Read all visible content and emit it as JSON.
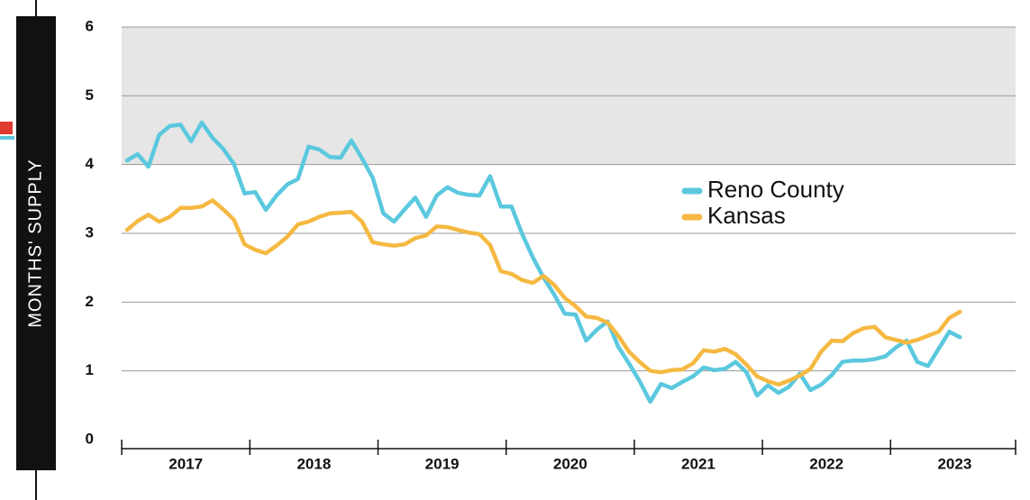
{
  "chart_data": {
    "type": "line",
    "y_label": "MONTHS' SUPPLY",
    "categories": [
      null,
      null,
      null,
      null,
      null,
      null,
      "2017",
      null,
      null,
      null,
      null,
      null,
      null,
      null,
      null,
      null,
      null,
      null,
      "2018",
      null,
      null,
      null,
      null,
      null,
      null,
      null,
      null,
      null,
      null,
      null,
      "2019",
      null,
      null,
      null,
      null,
      null,
      null,
      null,
      null,
      null,
      null,
      null,
      "2020",
      null,
      null,
      null,
      null,
      null,
      null,
      null,
      null,
      null,
      null,
      null,
      "2021",
      null,
      null,
      null,
      null,
      null,
      null,
      null,
      null,
      null,
      null,
      null,
      "2022",
      null,
      null,
      null,
      null,
      null,
      null,
      null,
      null,
      null,
      null,
      null,
      "2023"
    ],
    "series": [
      {
        "name": "Reno County",
        "color": "#5bc8de",
        "values": [
          4.06,
          4.15,
          3.97,
          4.43,
          4.56,
          4.58,
          4.34,
          4.61,
          4.39,
          4.23,
          4.01,
          3.58,
          3.6,
          3.34,
          3.55,
          3.71,
          3.79,
          4.26,
          4.22,
          4.11,
          4.1,
          4.35,
          4.09,
          3.81,
          3.29,
          3.17,
          3.35,
          3.52,
          3.24,
          3.55,
          3.67,
          3.59,
          3.56,
          3.55,
          3.83,
          3.39,
          3.39,
          2.99,
          2.65,
          2.36,
          2.11,
          1.83,
          1.82,
          1.44,
          1.6,
          1.72,
          1.35,
          1.11,
          0.85,
          0.55,
          0.81,
          0.75,
          0.84,
          0.92,
          1.05,
          1.01,
          1.03,
          1.13,
          0.98,
          0.64,
          0.79,
          0.68,
          0.77,
          0.96,
          0.72,
          0.8,
          0.94,
          1.13,
          1.15,
          1.15,
          1.17,
          1.21,
          1.34,
          1.44,
          1.13,
          1.07,
          1.32,
          1.57,
          1.49
        ]
      },
      {
        "name": "Kansas",
        "color": "#f5b942",
        "values": [
          3.05,
          3.18,
          3.27,
          3.17,
          3.24,
          3.37,
          3.37,
          3.39,
          3.48,
          3.35,
          3.2,
          2.84,
          2.76,
          2.71,
          2.82,
          2.95,
          3.13,
          3.17,
          3.24,
          3.29,
          3.3,
          3.31,
          3.17,
          2.87,
          2.84,
          2.82,
          2.84,
          2.93,
          2.97,
          3.1,
          3.09,
          3.05,
          3.01,
          2.99,
          2.83,
          2.45,
          2.41,
          2.32,
          2.28,
          2.38,
          2.25,
          2.06,
          1.94,
          1.79,
          1.77,
          1.7,
          1.51,
          1.28,
          1.13,
          1.0,
          0.98,
          1.01,
          1.02,
          1.11,
          1.3,
          1.28,
          1.32,
          1.24,
          1.09,
          0.92,
          0.85,
          0.8,
          0.86,
          0.93,
          1.03,
          1.28,
          1.44,
          1.43,
          1.55,
          1.62,
          1.64,
          1.49,
          1.45,
          1.41,
          1.45,
          1.51,
          1.57,
          1.77,
          1.86
        ]
      }
    ],
    "ylim": [
      0,
      6
    ],
    "yticks": [
      0,
      1,
      2,
      3,
      4,
      5,
      6
    ],
    "grid": true,
    "shade": {
      "from": 4,
      "to": 6,
      "color": "#e6e6e6"
    }
  }
}
